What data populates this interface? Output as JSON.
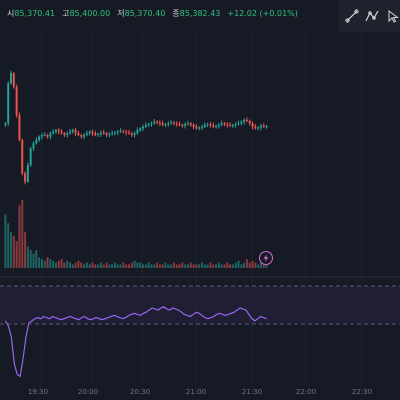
{
  "legend": {
    "open_key": "시",
    "open": "85,370.41",
    "high_key": "고",
    "high": "85,400.00",
    "low_key": "저",
    "low": "85,370.40",
    "close_key": "종",
    "close": "85,382.43",
    "change": "+12.02 (+0.01%)"
  },
  "toolbar": {
    "tools": [
      "line-tool-icon",
      "polyline-tool-icon",
      "cursor-tool-icon"
    ]
  },
  "time_axis": {
    "labels": [
      "19:30",
      "20:00",
      "20:30",
      "21:00",
      "21:30",
      "22:00",
      "22:30"
    ]
  },
  "colors": {
    "background": "#161a25",
    "up": "#26a69a",
    "down": "#ef5350",
    "indicator_line": "#9d6bff",
    "indicator_band": "#2a2240",
    "text": "#d1d4dc",
    "positive": "#2ec27e"
  },
  "chart_data": {
    "type": "candlestick",
    "title": "",
    "candles_close_trend": [
      85400,
      85640,
      85700,
      85620,
      85450,
      85300,
      85100,
      85050,
      85150,
      85250,
      85280,
      85300,
      85320,
      85330,
      85330,
      85320,
      85340,
      85350,
      85360,
      85350,
      85340,
      85330,
      85340,
      85350,
      85360,
      85340,
      85330,
      85320,
      85330,
      85340,
      85350,
      85340,
      85330,
      85335,
      85345,
      85340,
      85330,
      85335,
      85340,
      85345,
      85350,
      85355,
      85350,
      85345,
      85340,
      85330,
      85340,
      85360,
      85370,
      85380,
      85390,
      85395,
      85400,
      85410,
      85405,
      85400,
      85390,
      85395,
      85400,
      85405,
      85400,
      85395,
      85390,
      85385,
      85395,
      85400,
      85390,
      85380,
      85370,
      85375,
      85380,
      85390,
      85395,
      85390,
      85380,
      85385,
      85390,
      85400,
      85395,
      85390,
      85385,
      85390,
      85395,
      85400,
      85410,
      85420,
      85415,
      85400,
      85380,
      85370,
      85375,
      85385,
      85380,
      85382
    ],
    "volume_trend": [
      30,
      25,
      20,
      18,
      15,
      35,
      38,
      20,
      12,
      10,
      8,
      10,
      6,
      5,
      4,
      6,
      5,
      4,
      3,
      4,
      5,
      3,
      4,
      3,
      2,
      3,
      4,
      3,
      2,
      3,
      2,
      3,
      2,
      2,
      3,
      2,
      3,
      2,
      2,
      3,
      2,
      2,
      3,
      2,
      2,
      3,
      4,
      3,
      3,
      2,
      2,
      3,
      2,
      2,
      3,
      2,
      2,
      3,
      2,
      2,
      3,
      2,
      2,
      3,
      2,
      2,
      3,
      2,
      2,
      2,
      3,
      2,
      2,
      3,
      2,
      2,
      3,
      2,
      2,
      3,
      2,
      2,
      3,
      4,
      2,
      3,
      5,
      3,
      4,
      3,
      2,
      3,
      2,
      2
    ],
    "indicator_trend": [
      60,
      55,
      45,
      20,
      10,
      8,
      25,
      45,
      58,
      60,
      62,
      63,
      62,
      64,
      63,
      62,
      64,
      63,
      62,
      61,
      62,
      63,
      64,
      63,
      62,
      61,
      63,
      64,
      62,
      61,
      62,
      63,
      62,
      61,
      62,
      63,
      64,
      65,
      64,
      63,
      62,
      63,
      65,
      66,
      67,
      66,
      65,
      67,
      68,
      70,
      72,
      71,
      70,
      72,
      73,
      71,
      70,
      72,
      71,
      70,
      68,
      66,
      65,
      64,
      66,
      68,
      67,
      65,
      63,
      62,
      63,
      64,
      66,
      67,
      66,
      65,
      66,
      67,
      68,
      70,
      72,
      71,
      70,
      66,
      62,
      60,
      62,
      64,
      63,
      62
    ]
  }
}
